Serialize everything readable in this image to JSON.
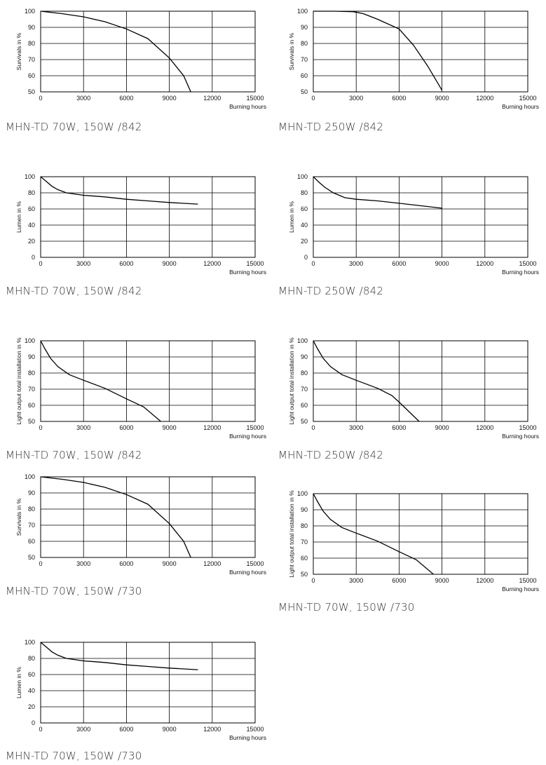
{
  "chart_data": [
    {
      "type": "line",
      "ylabel": "Survivals in %",
      "xlabel": "Burning hours",
      "xlim": [
        0,
        15000
      ],
      "ylim": [
        50,
        100
      ],
      "x_ticks": [
        "0",
        "3000",
        "6000",
        "9000",
        "12000",
        "15000"
      ],
      "y_ticks": [
        "50",
        "60",
        "70",
        "80",
        "90",
        "100"
      ],
      "series": [
        {
          "x": [
            0,
            1500,
            3000,
            4500,
            6000,
            7500,
            9000,
            10000,
            10500
          ],
          "y": [
            100,
            98.5,
            96.5,
            93.5,
            89,
            83,
            71,
            60,
            50
          ]
        }
      ],
      "caption": "MHN-TD 70W, 150W /842"
    },
    {
      "type": "line",
      "ylabel": "Survivals in %",
      "xlabel": "Burning hours",
      "xlim": [
        0,
        15000
      ],
      "ylim": [
        50,
        100
      ],
      "x_ticks": [
        "0",
        "3000",
        "6000",
        "9000",
        "12000",
        "15000"
      ],
      "y_ticks": [
        "50",
        "60",
        "70",
        "80",
        "90",
        "100"
      ],
      "series": [
        {
          "x": [
            0,
            1500,
            2800,
            3500,
            4500,
            6000,
            7000,
            8000,
            9000
          ],
          "y": [
            100,
            100,
            99.7,
            98.5,
            95,
            89,
            79,
            66,
            51
          ]
        }
      ],
      "caption": "MHN-TD 250W /842"
    },
    {
      "type": "line",
      "ylabel": "Lumen in %",
      "xlabel": "Burning hours",
      "xlim": [
        0,
        15000
      ],
      "ylim": [
        0,
        100
      ],
      "x_ticks": [
        "0",
        "3000",
        "6000",
        "9000",
        "12000",
        "15000"
      ],
      "y_ticks": [
        "0",
        "20",
        "40",
        "60",
        "80",
        "100"
      ],
      "series": [
        {
          "x": [
            0,
            400,
            800,
            1200,
            1800,
            3000,
            4500,
            6000,
            7500,
            9000,
            11000
          ],
          "y": [
            100,
            94,
            88,
            84,
            80,
            77,
            75,
            72,
            70,
            68,
            66
          ]
        }
      ],
      "caption": "MHN-TD 70W, 150W /842"
    },
    {
      "type": "line",
      "ylabel": "Lumen in %",
      "xlabel": "Burning hours",
      "xlim": [
        0,
        15000
      ],
      "ylim": [
        0,
        100
      ],
      "x_ticks": [
        "0",
        "3000",
        "6000",
        "9000",
        "12000",
        "15000"
      ],
      "y_ticks": [
        "0",
        "20",
        "40",
        "60",
        "80",
        "100"
      ],
      "series": [
        {
          "x": [
            0,
            400,
            800,
            1400,
            2200,
            3000,
            4500,
            6000,
            7500,
            9000
          ],
          "y": [
            100,
            93,
            87,
            80,
            74,
            72,
            70,
            67,
            64,
            61
          ]
        }
      ],
      "caption": "MHN-TD 250W /842"
    },
    {
      "type": "line",
      "ylabel": "Light output total installation in %",
      "xlabel": "Burning hours",
      "xlim": [
        0,
        15000
      ],
      "ylim": [
        50,
        100
      ],
      "x_ticks": [
        "0",
        "3000",
        "6000",
        "9000",
        "12000",
        "15000"
      ],
      "y_ticks": [
        "50",
        "60",
        "70",
        "80",
        "90",
        "100"
      ],
      "series": [
        {
          "x": [
            0,
            300,
            700,
            1200,
            2000,
            3000,
            4500,
            6000,
            7200,
            8400
          ],
          "y": [
            100,
            95,
            89,
            84,
            79,
            75.5,
            70.5,
            64,
            59,
            50
          ]
        }
      ],
      "caption": "MHN-TD 70W, 150W /842"
    },
    {
      "type": "line",
      "ylabel": "Light output total installation in %",
      "xlabel": "Burning hours",
      "xlim": [
        0,
        15000
      ],
      "ylim": [
        50,
        100
      ],
      "x_ticks": [
        "0",
        "3000",
        "6000",
        "9000",
        "12000",
        "15000"
      ],
      "y_ticks": [
        "50",
        "60",
        "70",
        "80",
        "90",
        "100"
      ],
      "series": [
        {
          "x": [
            0,
            300,
            700,
            1200,
            2000,
            3000,
            4500,
            5500,
            6000,
            7400
          ],
          "y": [
            100,
            95,
            89,
            84,
            79,
            75.5,
            70.5,
            66,
            62,
            50
          ]
        }
      ],
      "caption": "MHN-TD 250W /842"
    },
    {
      "type": "line",
      "ylabel": "Survivals in %",
      "xlabel": "Burning hours",
      "xlim": [
        0,
        15000
      ],
      "ylim": [
        50,
        100
      ],
      "x_ticks": [
        "0",
        "3000",
        "6000",
        "9000",
        "12000",
        "15000"
      ],
      "y_ticks": [
        "50",
        "60",
        "70",
        "80",
        "90",
        "100"
      ],
      "series": [
        {
          "x": [
            0,
            1500,
            3000,
            4500,
            6000,
            7500,
            9000,
            10000,
            10500
          ],
          "y": [
            100,
            98.5,
            96.5,
            93.5,
            89,
            83,
            71,
            60,
            50
          ]
        }
      ],
      "caption": "MHN-TD 70W, 150W /730"
    },
    {
      "type": "line",
      "ylabel": "Light output total installation in %",
      "xlabel": "Burning hours",
      "xlim": [
        0,
        15000
      ],
      "ylim": [
        50,
        100
      ],
      "x_ticks": [
        "0",
        "3000",
        "6000",
        "9000",
        "12000",
        "15000"
      ],
      "y_ticks": [
        "50",
        "60",
        "70",
        "80",
        "90",
        "100"
      ],
      "series": [
        {
          "x": [
            0,
            300,
            700,
            1200,
            2000,
            3000,
            4500,
            6000,
            7200,
            8400
          ],
          "y": [
            100,
            95,
            89,
            84,
            79,
            75.5,
            70.5,
            64,
            59,
            50
          ]
        }
      ],
      "caption": "MHN-TD 70W, 150W /730"
    },
    {
      "type": "line",
      "ylabel": "Lumen in %",
      "xlabel": "Burning hours",
      "xlim": [
        0,
        15000
      ],
      "ylim": [
        0,
        100
      ],
      "x_ticks": [
        "0",
        "3000",
        "6000",
        "9000",
        "12000",
        "15000"
      ],
      "y_ticks": [
        "0",
        "20",
        "40",
        "60",
        "80",
        "100"
      ],
      "series": [
        {
          "x": [
            0,
            400,
            800,
            1200,
            1800,
            3000,
            4500,
            6000,
            7500,
            9000,
            11000
          ],
          "y": [
            100,
            94,
            88,
            84,
            80,
            77,
            75,
            72,
            70,
            68,
            66
          ]
        }
      ],
      "caption": "MHN-TD 70W, 150W /730"
    }
  ]
}
